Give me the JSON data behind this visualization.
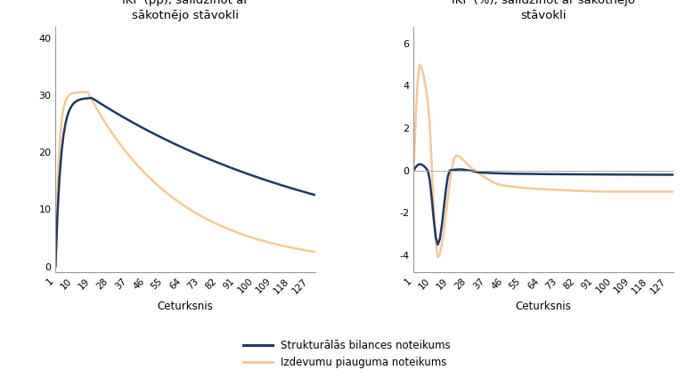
{
  "title1": "Valdības parāda attiecība pret\nIKP (pp), salīdzinot ar\nsākotnējo stāvokli",
  "title2": "IKP (%), salīdzinot ar sākotnējo\nstāvokli",
  "xlabel": "Ceturksnis",
  "legend1": "Strukturālās bilances noteikums",
  "legend2": "Izdevumu piauguma noteikums",
  "color_blue": "#1F3864",
  "color_orange": "#F5C897",
  "n_points": 130,
  "yticks1": [
    0,
    10,
    20,
    30,
    40
  ],
  "ylim1": [
    -1,
    42
  ],
  "yticks2": [
    -4,
    -2,
    0,
    2,
    4,
    6
  ],
  "ylim2": [
    -4.8,
    6.8
  ],
  "xticks": [
    1,
    10,
    19,
    28,
    37,
    46,
    55,
    64,
    73,
    82,
    91,
    100,
    109,
    118,
    127
  ]
}
